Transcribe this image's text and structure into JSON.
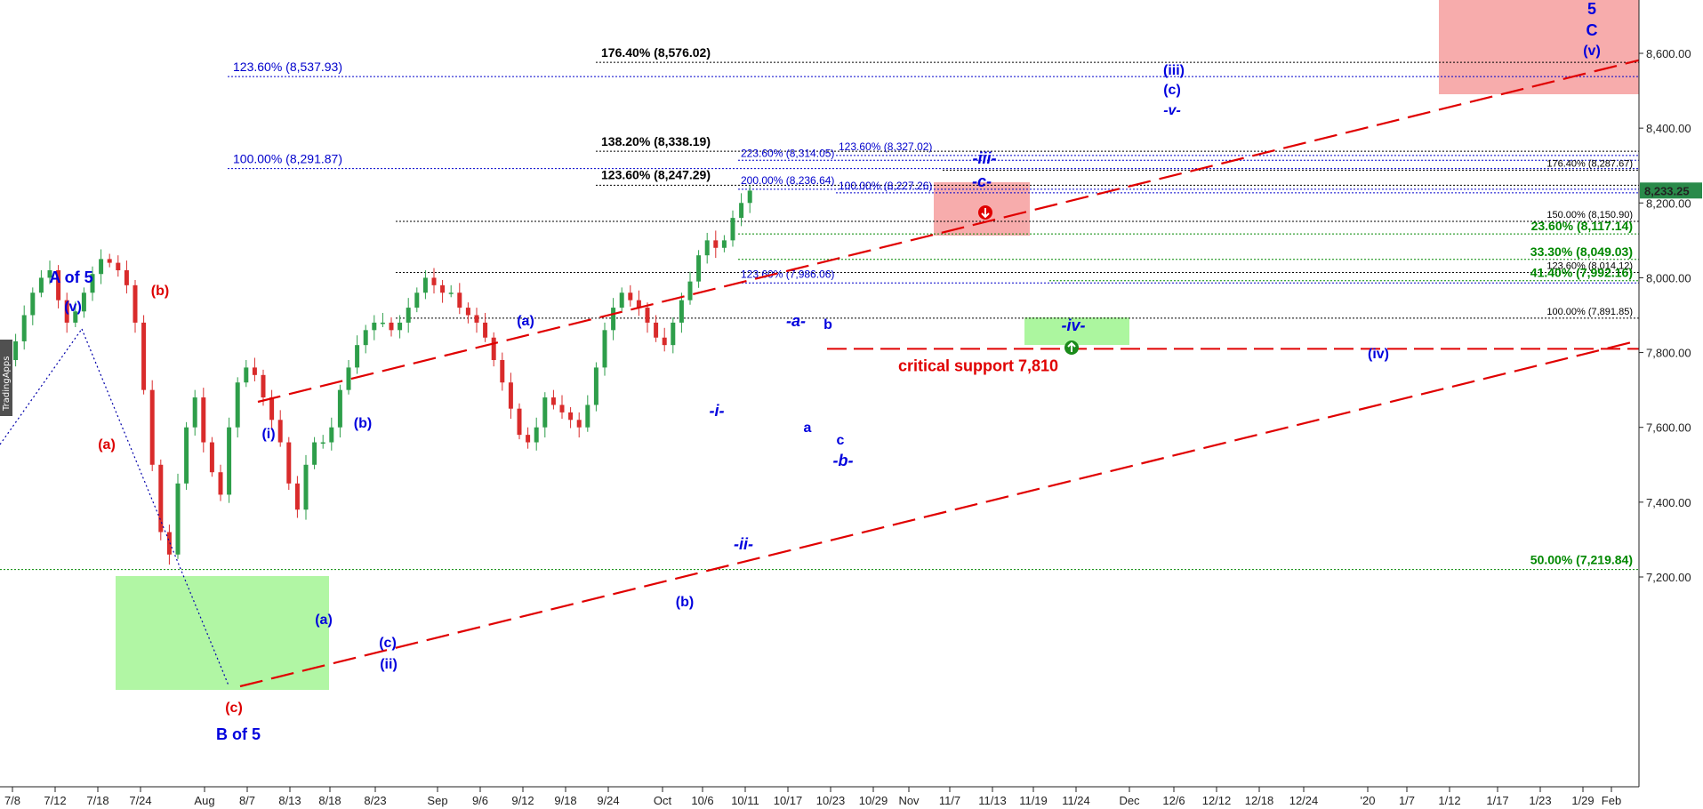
{
  "chart_data": {
    "type": "candlestick",
    "watermark": "TradingApps",
    "ylim": [
      7100,
      8720
    ],
    "yticks": [
      "7,200.00",
      "7,400.00",
      "7,600.00",
      "7,800.00",
      "8,000.00",
      "8,200.00",
      "8,400.00",
      "8,600.00"
    ],
    "ytick_values": [
      7200,
      7400,
      7600,
      7800,
      8000,
      8200,
      8400,
      8600
    ],
    "xticks": [
      "7/8",
      "7/12",
      "7/18",
      "7/24",
      "Aug",
      "8/7",
      "8/13",
      "8/18",
      "8/23",
      "Sep",
      "9/6",
      "9/12",
      "9/18",
      "9/24",
      "Oct",
      "10/6",
      "10/11",
      "10/17",
      "10/23",
      "10/29",
      "Nov",
      "11/7",
      "11/13",
      "11/19",
      "11/24",
      "Dec",
      "12/6",
      "12/12",
      "12/18",
      "12/24",
      "'20",
      "1/7",
      "1/12",
      "1/17",
      "1/23",
      "1/29",
      "Feb"
    ],
    "last_price": "8,233.25",
    "last_price_value": 8233.25,
    "closes": [
      7780,
      7830,
      7900,
      7960,
      8000,
      8020,
      7940,
      7880,
      7910,
      7960,
      8010,
      8050,
      8040,
      8020,
      7980,
      7880,
      7700,
      7500,
      7320,
      7260,
      7450,
      7600,
      7680,
      7560,
      7480,
      7420,
      7600,
      7720,
      7760,
      7740,
      7680,
      7620,
      7560,
      7450,
      7380,
      7500,
      7560,
      7560,
      7600,
      7700,
      7760,
      7820,
      7860,
      7880,
      7880,
      7860,
      7880,
      7920,
      7960,
      8000,
      7980,
      7960,
      7960,
      7920,
      7900,
      7880,
      7840,
      7780,
      7720,
      7650,
      7580,
      7560,
      7600,
      7680,
      7660,
      7640,
      7620,
      7600,
      7660,
      7760,
      7860,
      7920,
      7960,
      7940,
      7920,
      7880,
      7840,
      7820,
      7880,
      7940,
      7990,
      8060,
      8100,
      8080,
      8100,
      8160,
      8200,
      8233
    ],
    "series_note": "",
    "fib_levels": [
      {
        "label": "176.40% (8,576.02)",
        "value": 8576.02,
        "color": "#000000"
      },
      {
        "label": "123.60% (8,537.93)",
        "value": 8537.93,
        "color": "#0000cc"
      },
      {
        "label": "138.20% (8,338.19)",
        "value": 8338.19,
        "color": "#000000"
      },
      {
        "label": "223.60% (8,314.05)",
        "value": 8314.05,
        "color": "#0000cc"
      },
      {
        "label": "123.60% (8,327.02)",
        "value": 8327.02,
        "color": "#0000cc"
      },
      {
        "label": "100.00% (8,291.87)",
        "value": 8291.87,
        "color": "#0000cc"
      },
      {
        "label": "176.40% (8,287.67)",
        "value": 8287.67,
        "color": "#000000"
      },
      {
        "label": "123.60% (8,247.29)",
        "value": 8247.29,
        "color": "#000000"
      },
      {
        "label": "200.00% (8,236.64)",
        "value": 8236.64,
        "color": "#0000cc"
      },
      {
        "label": "100.00% (8,227.26)",
        "value": 8227.26,
        "color": "#0000cc"
      },
      {
        "label": "150.00% (8,150.90)",
        "value": 8150.9,
        "color": "#000000"
      },
      {
        "label": "23.60% (8,117.14)",
        "value": 8117.14,
        "color": "#008800"
      },
      {
        "label": "33.30% (8,049.03)",
        "value": 8049.03,
        "color": "#008800"
      },
      {
        "label": "123.60% (8,014.12)",
        "value": 8014.12,
        "color": "#000000"
      },
      {
        "label": "41.40% (7,992.16)",
        "value": 7992.16,
        "color": "#008800"
      },
      {
        "label": "123.60% (7,986.06)",
        "value": 7986.06,
        "color": "#0000cc"
      },
      {
        "label": "100.00% (7,891.85)",
        "value": 7891.85,
        "color": "#000000"
      },
      {
        "label": "50.00% (7,219.84)",
        "value": 7219.84,
        "color": "#008800"
      }
    ],
    "critical_support": {
      "label": "critical support 7,810",
      "value": 7810,
      "color": "#e00000"
    },
    "wave_labels": [
      {
        "text": "A of 5",
        "color": "#0000dd"
      },
      {
        "text": "(v)",
        "color": "#0000dd"
      },
      {
        "text": "(b)",
        "color": "#dd0000"
      },
      {
        "text": "(a)",
        "color": "#dd0000"
      },
      {
        "text": "(c)",
        "color": "#dd0000"
      },
      {
        "text": "B of 5",
        "color": "#0000dd"
      },
      {
        "text": "(i)",
        "color": "#0000dd"
      },
      {
        "text": "(a)",
        "color": "#0000dd"
      },
      {
        "text": "(b)",
        "color": "#0000dd"
      },
      {
        "text": "(c)",
        "color": "#0000dd"
      },
      {
        "text": "(ii)",
        "color": "#0000dd"
      },
      {
        "text": "(a)",
        "color": "#0000dd"
      },
      {
        "text": "(b)",
        "color": "#0000dd"
      },
      {
        "text": "-i-",
        "color": "#0000dd"
      },
      {
        "text": "-ii-",
        "color": "#0000dd"
      },
      {
        "text": "-a-",
        "color": "#0000dd"
      },
      {
        "text": "b",
        "color": "#0000dd"
      },
      {
        "text": "a",
        "color": "#0000dd"
      },
      {
        "text": "c",
        "color": "#0000dd"
      },
      {
        "text": "-b-",
        "color": "#0000dd"
      },
      {
        "text": "-iii-",
        "color": "#0000dd"
      },
      {
        "text": "-c-",
        "color": "#0000dd"
      },
      {
        "text": "-iv-",
        "color": "#0000dd"
      },
      {
        "text": "(iii)",
        "color": "#0000dd"
      },
      {
        "text": "(c)",
        "color": "#0000dd"
      },
      {
        "text": "-v-",
        "color": "#0000dd"
      },
      {
        "text": "(iv)",
        "color": "#0000dd"
      },
      {
        "text": "5",
        "color": "#0000dd"
      },
      {
        "text": "C",
        "color": "#0000dd"
      },
      {
        "text": "(v)",
        "color": "#0000dd"
      }
    ],
    "colors": {
      "up": "#2e9e4a",
      "down": "#d92b2b",
      "channel": "#e00000",
      "zone_red": "#f6a3a3",
      "zone_green": "#a8f59a"
    }
  }
}
